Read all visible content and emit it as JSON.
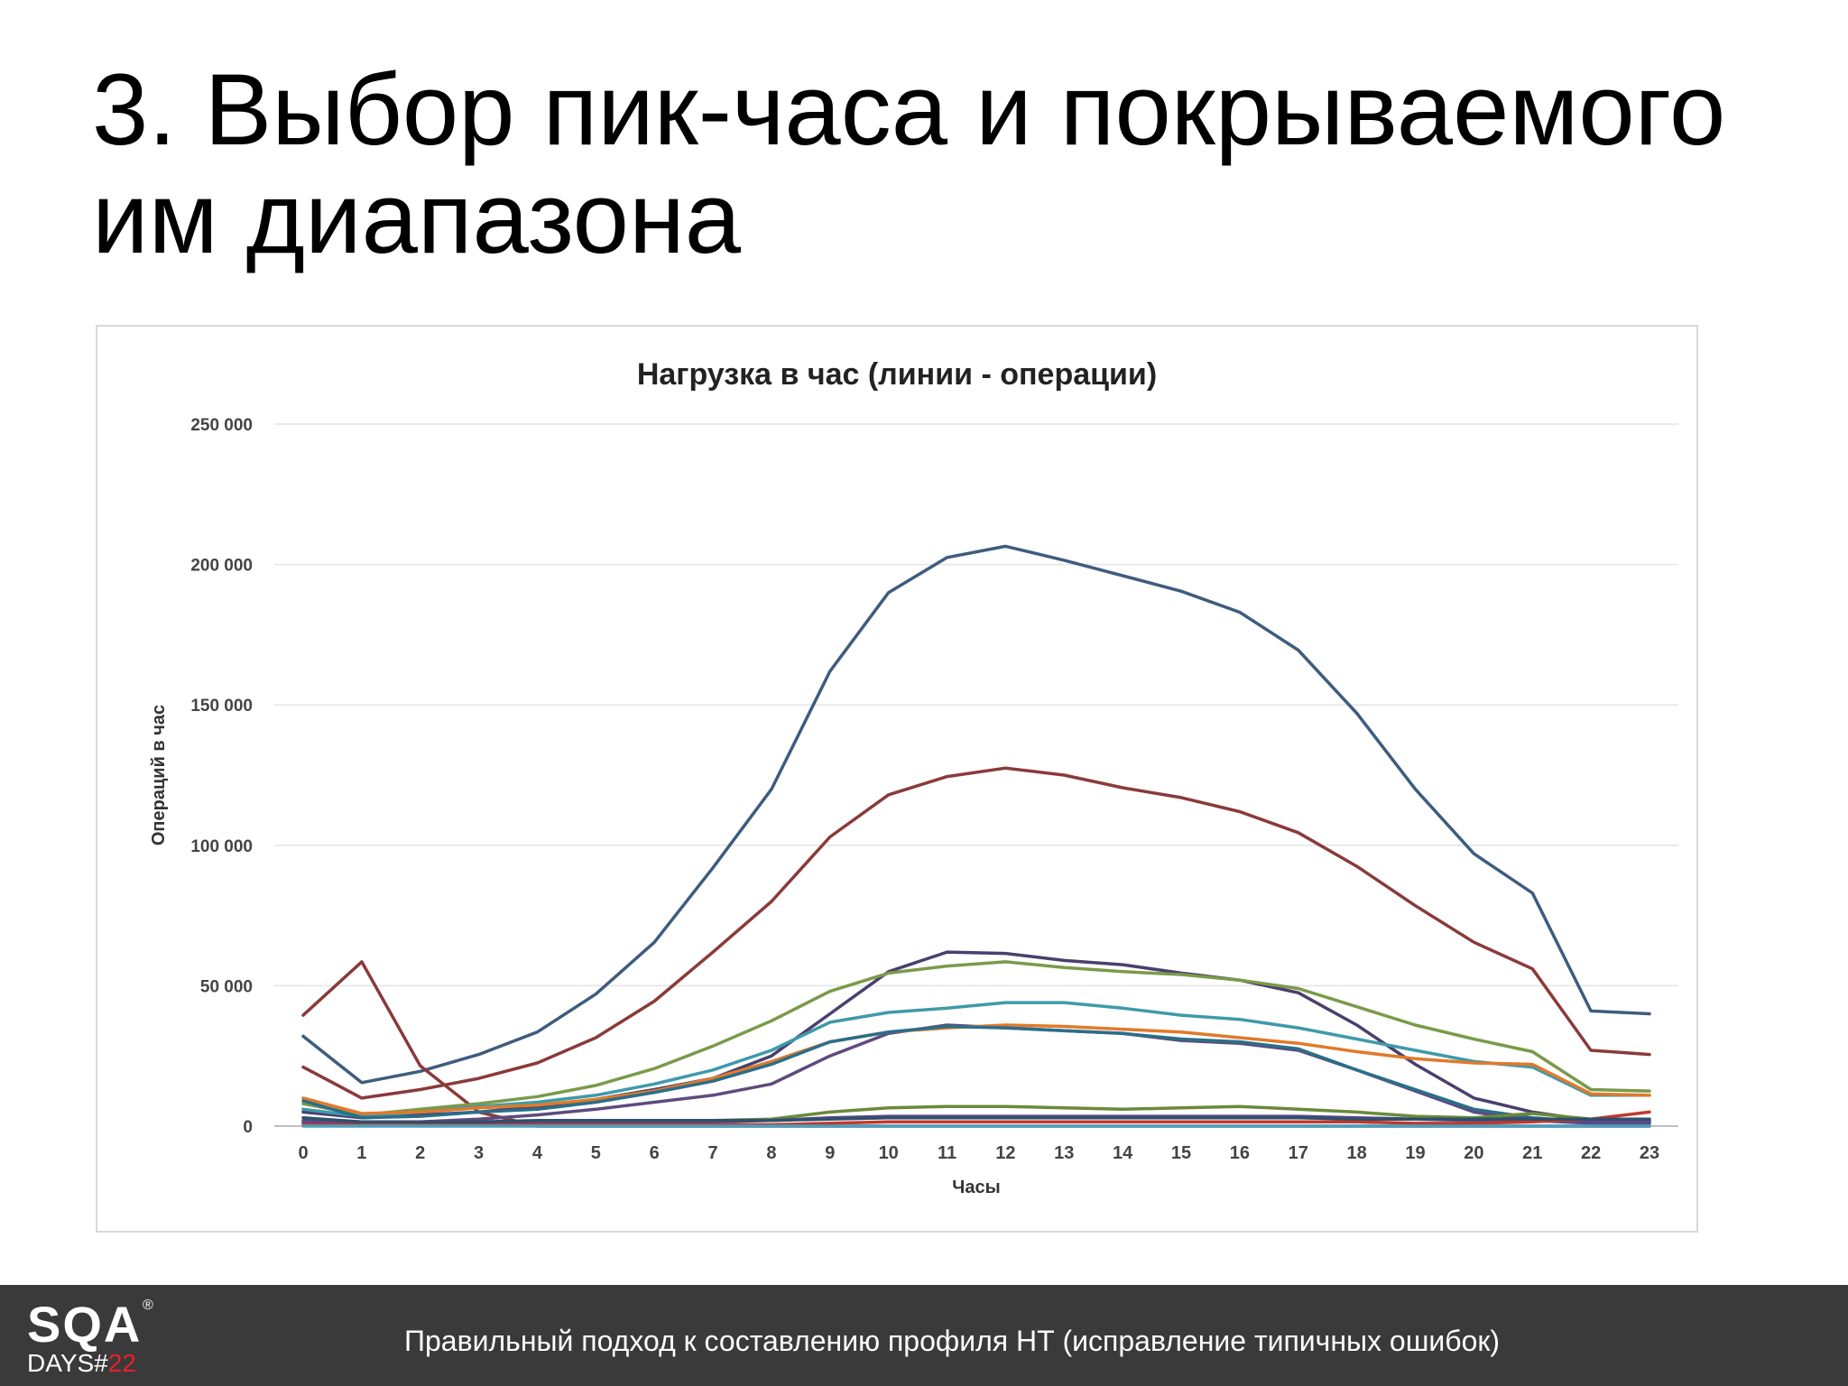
{
  "slide": {
    "title_line1": "3. Выбор пик-часа и покрываемого",
    "title_line2": "им диапазона"
  },
  "footer": {
    "logo_main": "SQA",
    "logo_reg": "®",
    "logo_sub_prefix": "DAYS#",
    "logo_sub_number": "22",
    "text": "Правильный подход к составлению профиля НТ (исправление типичных ошибок)"
  },
  "chart_data": {
    "type": "line",
    "title": "Нагрузка в час (линии - операции)",
    "xlabel": "Часы",
    "ylabel": "Операций в час",
    "x": [
      0,
      1,
      2,
      3,
      4,
      5,
      6,
      7,
      8,
      9,
      10,
      11,
      12,
      13,
      14,
      15,
      16,
      17,
      18,
      19,
      20,
      21,
      22,
      23
    ],
    "ylim": [
      0,
      250000
    ],
    "yticks": [
      0,
      50000,
      100000,
      150000,
      200000,
      250000
    ],
    "ytick_labels": [
      "0",
      "50 000",
      "100 000",
      "150 000",
      "200 000",
      "250 000"
    ],
    "grid": true,
    "legend": "none",
    "series": [
      {
        "color": "#3e5c7e",
        "values": [
          32000,
          15500,
          19500,
          25500,
          33500,
          47000,
          65500,
          92000,
          120000,
          162000,
          190000,
          202500,
          206500,
          201500,
          196000,
          190500,
          183000,
          169500,
          147000,
          120000,
          97000,
          83000,
          41000,
          40000
        ]
      },
      {
        "color": "#8a3a3a",
        "values": [
          39500,
          58500,
          21500,
          5000,
          0,
          0,
          0,
          0,
          0,
          0,
          0,
          0,
          0,
          0,
          0,
          0,
          0,
          0,
          0,
          0,
          0,
          0,
          0,
          0
        ]
      },
      {
        "color": "#8a3a3a",
        "values": [
          21000,
          10000,
          13000,
          17000,
          22500,
          31500,
          44500,
          62000,
          80000,
          103000,
          118000,
          124500,
          127500,
          125000,
          120500,
          117000,
          112000,
          104500,
          92500,
          78500,
          65500,
          56000,
          27000,
          25500
        ]
      },
      {
        "color": "#5e4a7e",
        "values": [
          2000,
          1000,
          1500,
          2500,
          4000,
          6000,
          8500,
          11000,
          15000,
          25000,
          33000,
          36000,
          35000,
          34000,
          33000,
          30500,
          29500,
          27000,
          20000,
          12500,
          5000,
          2000,
          1000,
          1000
        ]
      },
      {
        "color": "#4a3f6e",
        "values": [
          5000,
          3000,
          4000,
          5000,
          7000,
          9500,
          13000,
          17000,
          25000,
          40000,
          55000,
          62000,
          61500,
          59000,
          57500,
          54500,
          52000,
          47500,
          36000,
          22000,
          10000,
          5000,
          2000,
          2000
        ]
      },
      {
        "color": "#7a9a4a",
        "values": [
          8000,
          4000,
          6000,
          8000,
          10500,
          14500,
          20500,
          28500,
          37500,
          48000,
          54500,
          57000,
          58500,
          56500,
          55000,
          54000,
          52000,
          49000,
          42500,
          36000,
          31000,
          26500,
          13000,
          12500
        ]
      },
      {
        "color": "#3f9aaa",
        "values": [
          6000,
          3500,
          5000,
          7000,
          8500,
          11000,
          15000,
          20000,
          27000,
          37000,
          40500,
          42000,
          44000,
          44000,
          42000,
          39500,
          38000,
          35000,
          31000,
          27000,
          23000,
          21000,
          11000,
          11000
        ]
      },
      {
        "color": "#e07a2a",
        "values": [
          10000,
          4500,
          5000,
          6500,
          7500,
          9500,
          12500,
          17000,
          23000,
          30000,
          33500,
          35000,
          36000,
          35500,
          34500,
          33500,
          31500,
          29500,
          26500,
          24000,
          22500,
          22000,
          11500,
          11000
        ]
      },
      {
        "color": "#2a6e8a",
        "values": [
          9000,
          3000,
          3500,
          5000,
          6000,
          8500,
          12000,
          16000,
          22000,
          30000,
          33500,
          35500,
          35000,
          34000,
          33000,
          31000,
          30000,
          27500,
          20000,
          13000,
          6000,
          3000,
          1500,
          1500
        ]
      },
      {
        "color": "#6a8a3a",
        "values": [
          1000,
          1000,
          1000,
          1200,
          1300,
          1500,
          1800,
          2000,
          2500,
          5000,
          6500,
          7000,
          7000,
          6500,
          6000,
          6500,
          7000,
          6000,
          5000,
          3500,
          3000,
          4500,
          2500,
          2000
        ]
      },
      {
        "color": "#5a4a8a",
        "values": [
          1500,
          1000,
          1000,
          1000,
          1000,
          1000,
          1200,
          1500,
          2000,
          3000,
          3500,
          3500,
          3500,
          3500,
          3500,
          3500,
          3500,
          3500,
          3000,
          2500,
          2000,
          2000,
          1500,
          1500
        ]
      },
      {
        "color": "#c0392b",
        "values": [
          500,
          500,
          500,
          500,
          500,
          500,
          500,
          500,
          500,
          1000,
          1500,
          1500,
          1500,
          1500,
          1500,
          1500,
          1500,
          1500,
          1500,
          1000,
          1000,
          1500,
          2500,
          5000
        ]
      },
      {
        "color": "#2f4f6f",
        "values": [
          3000,
          1500,
          1500,
          1500,
          2000,
          2000,
          2000,
          2000,
          2000,
          2500,
          3000,
          3000,
          3000,
          3000,
          3000,
          3000,
          3000,
          3000,
          2500,
          2500,
          2500,
          2500,
          2500,
          2500
        ]
      },
      {
        "color": "#4aa0c0",
        "values": [
          0,
          0,
          0,
          0,
          0,
          0,
          0,
          0,
          0,
          0,
          0,
          0,
          0,
          0,
          0,
          0,
          0,
          0,
          0,
          0,
          0,
          0,
          0,
          0
        ]
      }
    ]
  }
}
